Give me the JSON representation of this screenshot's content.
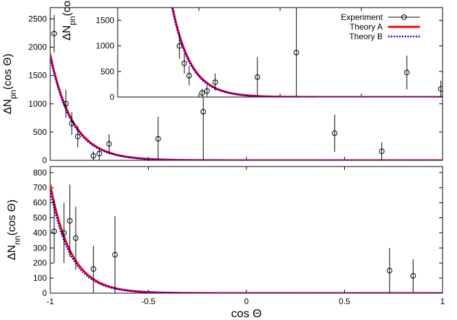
{
  "chart_data": [
    {
      "panel": "top",
      "type": "scatter",
      "ylabel": "ΔN_pn(cos Θ)",
      "xlim": [
        -1,
        1
      ],
      "ylim": [
        0,
        2700
      ],
      "yticks": [
        0,
        500,
        1000,
        1500,
        2000,
        2500
      ],
      "grid": false,
      "series": [
        {
          "name": "Experiment",
          "type": "errorbar",
          "points": [
            {
              "x": -0.98,
              "y": 2240,
              "err": 330
            },
            {
              "x": -0.92,
              "y": 1000,
              "err": 250
            },
            {
              "x": -0.89,
              "y": 650,
              "err": 200
            },
            {
              "x": -0.86,
              "y": 420,
              "err": 190
            },
            {
              "x": -0.78,
              "y": 80,
              "err": 80
            },
            {
              "x": -0.75,
              "y": 120,
              "err": 110
            },
            {
              "x": -0.7,
              "y": 290,
              "err": 170
            },
            {
              "x": -0.45,
              "y": 380,
              "err": 390
            },
            {
              "x": -0.22,
              "y": 860,
              "err": 860
            },
            {
              "x": 0.45,
              "y": 480,
              "err": 330
            },
            {
              "x": 0.69,
              "y": 160,
              "err": 160
            }
          ]
        },
        {
          "name": "Theory A",
          "type": "line",
          "color": "#ff0000",
          "model": "exponential",
          "a": 1870,
          "b": 8.7
        },
        {
          "name": "Theory B",
          "type": "line",
          "color": "#0000ff",
          "model": "exponential",
          "a": 1830,
          "b": 8.9
        }
      ]
    },
    {
      "panel": "inset",
      "type": "scatter",
      "ylabel": "ΔN_pn(cos",
      "xlim": [
        -1,
        1
      ],
      "ylim": [
        0,
        1750
      ],
      "yticks": [
        0,
        500,
        1000,
        1500
      ],
      "grid": false,
      "legend": "top-right",
      "series": [
        {
          "name": "Experiment",
          "type": "errorbar",
          "points": [
            {
              "x": -0.62,
              "y": 1000,
              "err": 250
            },
            {
              "x": -0.59,
              "y": 660,
              "err": 200
            },
            {
              "x": -0.56,
              "y": 420,
              "err": 190
            },
            {
              "x": -0.48,
              "y": 80,
              "err": 80
            },
            {
              "x": -0.45,
              "y": 120,
              "err": 110
            },
            {
              "x": -0.4,
              "y": 290,
              "err": 170
            },
            {
              "x": -0.14,
              "y": 390,
              "err": 390
            },
            {
              "x": 0.1,
              "y": 870,
              "err": 870
            },
            {
              "x": 0.78,
              "y": 480,
              "err": 330
            },
            {
              "x": 0.99,
              "y": 160,
              "err": 160
            }
          ]
        },
        {
          "name": "Theory A",
          "type": "line",
          "color": "#ff0000",
          "model": "exponential",
          "a": 1870,
          "b": 8.7,
          "shift": 0.33
        },
        {
          "name": "Theory B",
          "type": "line",
          "color": "#0000ff",
          "model": "exponential",
          "a": 1830,
          "b": 8.9,
          "shift": 0.33
        }
      ]
    },
    {
      "panel": "bottom",
      "type": "scatter",
      "xlabel": "cos Θ",
      "ylabel": "ΔN_nn(cos Θ)",
      "xlim": [
        -1,
        1
      ],
      "ylim": [
        0,
        840
      ],
      "xticks": [
        -1,
        -0.5,
        0,
        0.5,
        1
      ],
      "yticks": [
        0,
        100,
        200,
        300,
        400,
        500,
        600,
        700,
        800
      ],
      "grid": false,
      "series": [
        {
          "name": "Experiment",
          "type": "errorbar",
          "points": [
            {
              "x": -0.98,
              "y": 410,
              "err": 210
            },
            {
              "x": -0.93,
              "y": 400,
              "err": 200
            },
            {
              "x": -0.9,
              "y": 480,
              "err": 240
            },
            {
              "x": -0.87,
              "y": 365,
              "err": 210
            },
            {
              "x": -0.78,
              "y": 160,
              "err": 155
            },
            {
              "x": -0.67,
              "y": 255,
              "err": 255
            },
            {
              "x": 0.73,
              "y": 150,
              "err": 150
            },
            {
              "x": 0.85,
              "y": 115,
              "err": 110
            }
          ]
        },
        {
          "name": "Theory A",
          "type": "line",
          "color": "#ff0000",
          "model": "exponential",
          "a": 720,
          "b": 9.3
        },
        {
          "name": "Theory B",
          "type": "line",
          "color": "#0000ff",
          "model": "exponential",
          "a": 680,
          "b": 9.5
        }
      ]
    }
  ],
  "legend": {
    "entries": [
      "Experiment",
      "Theory A",
      "Theory B"
    ]
  }
}
